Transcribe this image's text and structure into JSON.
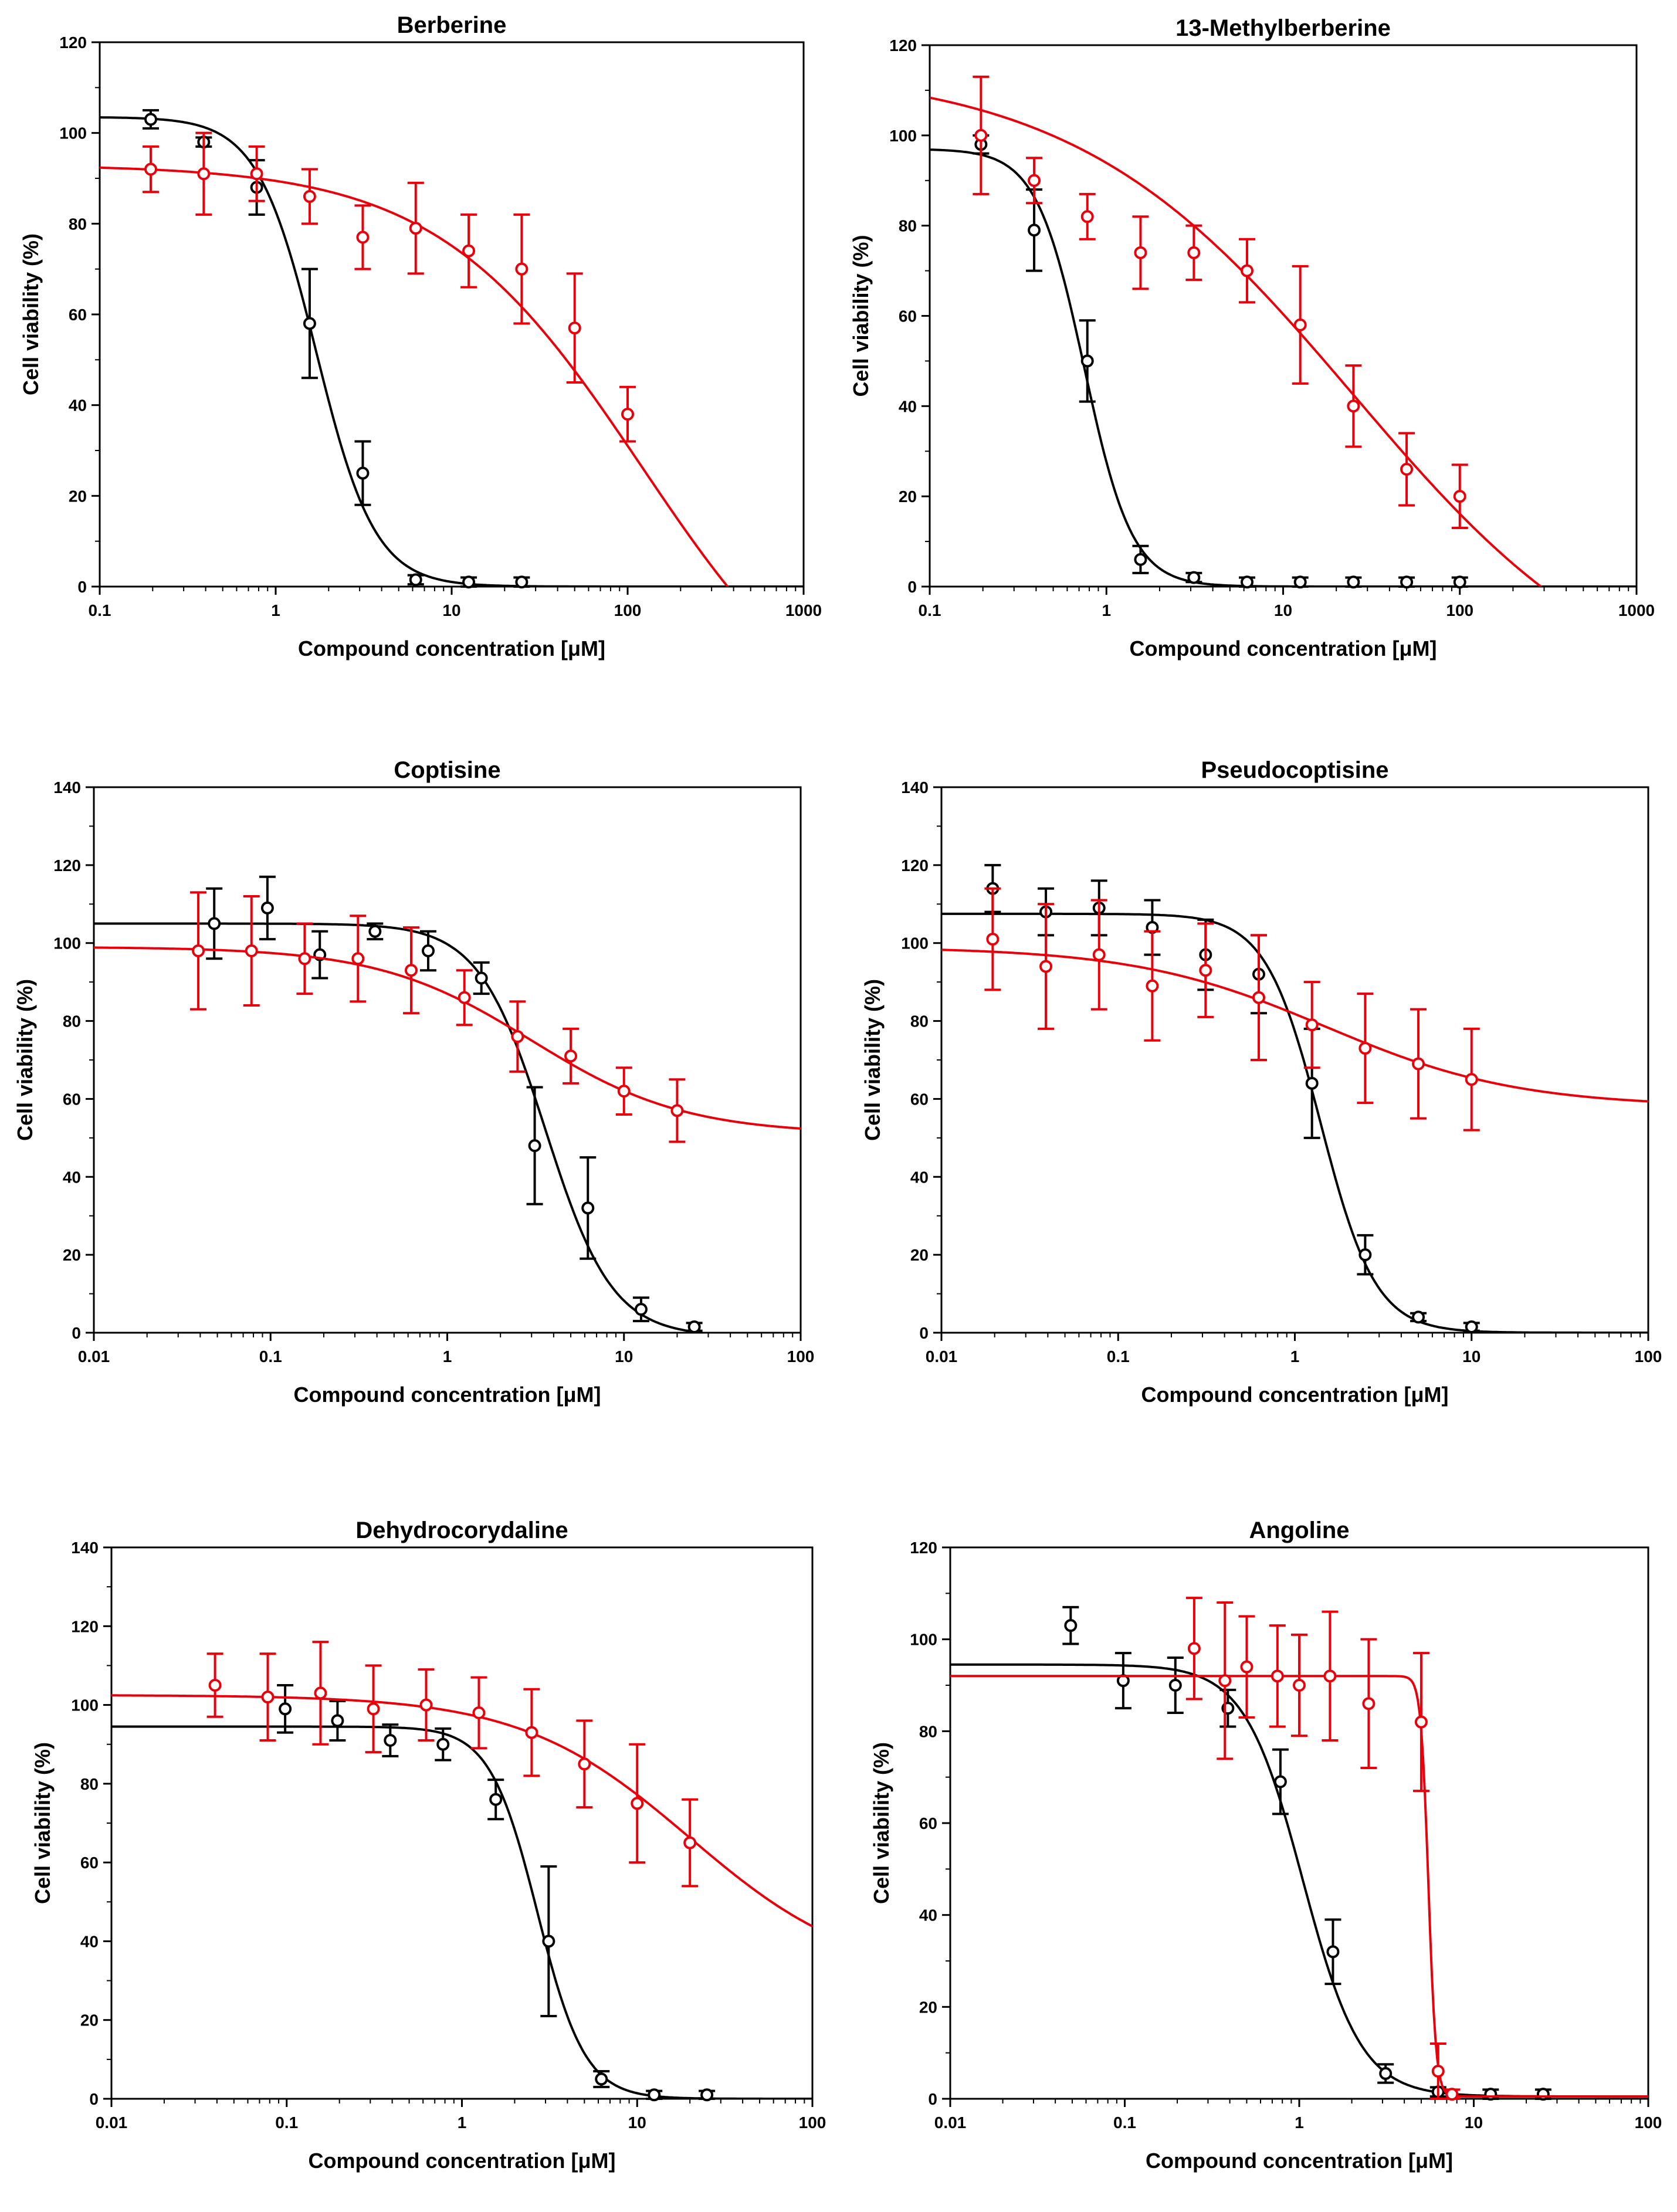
{
  "figure": {
    "xlabel_all": "Compound concentration [μM]",
    "ylabel_all": "Cell viability (%)"
  },
  "chart_data": [
    {
      "type": "scatter",
      "title": "Berberine",
      "xlabel": "Compound concentration [μM]",
      "ylabel": "Cell viability (%)",
      "xscale": "log",
      "xlim": [
        0.1,
        1000
      ],
      "ylim": [
        0,
        120
      ],
      "xticks": [
        "0.1",
        "1",
        "10",
        "100",
        "1000"
      ],
      "yticks": [
        "0",
        "20",
        "40",
        "60",
        "80",
        "100",
        "120"
      ],
      "series": [
        {
          "name": "black",
          "color": "#000000",
          "x": [
            0.195,
            0.39,
            0.78,
            1.56,
            3.125,
            6.25,
            12.5,
            25
          ],
          "y": [
            103,
            98,
            88,
            58,
            25,
            1.5,
            1,
            1
          ],
          "err": [
            2,
            1,
            6,
            12,
            7,
            1,
            1,
            1
          ],
          "fit": {
            "top": 103.5,
            "bottom": 0,
            "ec50": 1.7,
            "hill": 2.6
          }
        },
        {
          "name": "red",
          "color": "#e8000b",
          "x": [
            0.195,
            0.39,
            0.78,
            1.56,
            3.125,
            6.25,
            12.5,
            25,
            50,
            100
          ],
          "y": [
            92,
            91,
            91,
            86,
            77,
            79,
            74,
            70,
            57,
            38
          ],
          "err": [
            5,
            9,
            6,
            6,
            7,
            10,
            8,
            12,
            12,
            6
          ],
          "fit": {
            "top": 93,
            "bottom": -40,
            "ec50": 120,
            "hill": 0.75
          }
        }
      ]
    },
    {
      "type": "scatter",
      "title": "13-Methylberberine",
      "xlabel": "Compound concentration [μM]",
      "ylabel": "Cell viability (%)",
      "xscale": "log",
      "xlim": [
        0.1,
        1000
      ],
      "ylim": [
        0,
        120
      ],
      "xticks": [
        "0.1",
        "1",
        "10",
        "100",
        "1000"
      ],
      "yticks": [
        "0",
        "20",
        "40",
        "60",
        "80",
        "100",
        "120"
      ],
      "series": [
        {
          "name": "black",
          "color": "#000000",
          "x": [
            0.195,
            0.39,
            0.78,
            1.56,
            3.125,
            6.25,
            12.5,
            25,
            50,
            100
          ],
          "y": [
            98,
            79,
            50,
            6,
            2,
            1,
            1,
            1,
            1,
            1
          ],
          "err": [
            2,
            9,
            9,
            3,
            1,
            1,
            1,
            1,
            1,
            1
          ],
          "fit": {
            "top": 97,
            "bottom": 0,
            "ec50": 0.75,
            "hill": 3.2
          }
        },
        {
          "name": "red",
          "color": "#e8000b",
          "x": [
            0.195,
            0.39,
            0.78,
            1.56,
            3.125,
            6.25,
            12.5,
            25,
            50,
            100
          ],
          "y": [
            100,
            90,
            82,
            74,
            74,
            70,
            58,
            40,
            26,
            20
          ],
          "err": [
            13,
            5,
            5,
            8,
            6,
            7,
            13,
            9,
            8,
            7
          ],
          "fit": {
            "top": 115,
            "bottom": -30,
            "ec50": 25,
            "hill": 0.55
          }
        }
      ]
    },
    {
      "type": "scatter",
      "title": "Coptisine",
      "xlabel": "Compound concentration [μM]",
      "ylabel": "Cell viability (%)",
      "xscale": "log",
      "xlim": [
        0.01,
        100
      ],
      "ylim": [
        0,
        140
      ],
      "xticks": [
        "0.01",
        "0.1",
        "1",
        "10",
        "100"
      ],
      "yticks": [
        "0",
        "20",
        "40",
        "60",
        "80",
        "100",
        "120",
        "140"
      ],
      "series": [
        {
          "name": "black",
          "color": "#000000",
          "x": [
            0.048,
            0.096,
            0.19,
            0.39,
            0.78,
            1.56,
            3.125,
            6.25,
            12.5,
            25
          ],
          "y": [
            105,
            109,
            97,
            103,
            98,
            91,
            48,
            32,
            6,
            1.5
          ],
          "err": [
            9,
            8,
            6,
            2,
            5,
            4,
            15,
            13,
            3,
            1
          ],
          "fit": {
            "top": 105,
            "bottom": -1,
            "ec50": 3.6,
            "hill": 2.3
          }
        },
        {
          "name": "red",
          "color": "#e8000b",
          "x": [
            0.039,
            0.078,
            0.156,
            0.3125,
            0.625,
            1.25,
            2.5,
            5,
            10,
            20
          ],
          "y": [
            98,
            98,
            96,
            96,
            93,
            86,
            76,
            71,
            62,
            57
          ],
          "err": [
            15,
            14,
            9,
            11,
            11,
            7,
            9,
            7,
            6,
            8
          ],
          "fit": {
            "top": 99,
            "bottom": 51,
            "ec50": 3,
            "hill": 1
          }
        }
      ]
    },
    {
      "type": "scatter",
      "title": "Pseudocoptisine",
      "xlabel": "Compound concentration [μM]",
      "ylabel": "Cell viability (%)",
      "xscale": "log",
      "xlim": [
        0.01,
        100
      ],
      "ylim": [
        0,
        140
      ],
      "xticks": [
        "0.01",
        "0.1",
        "1",
        "10",
        "100"
      ],
      "yticks": [
        "0",
        "20",
        "40",
        "60",
        "80",
        "100",
        "120",
        "140"
      ],
      "series": [
        {
          "name": "black",
          "color": "#000000",
          "x": [
            0.0195,
            0.039,
            0.078,
            0.156,
            0.3125,
            0.625,
            1.25,
            2.5,
            5,
            10
          ],
          "y": [
            114,
            108,
            109,
            104,
            97,
            92,
            64,
            20,
            4,
            1.5
          ],
          "err": [
            6,
            6,
            7,
            7,
            9,
            10,
            14,
            5,
            1,
            1
          ],
          "fit": {
            "top": 107.5,
            "bottom": 0,
            "ec50": 1.4,
            "hill": 2.8
          }
        },
        {
          "name": "red",
          "color": "#e8000b",
          "x": [
            0.0195,
            0.039,
            0.078,
            0.156,
            0.3125,
            0.625,
            1.25,
            2.5,
            5,
            10
          ],
          "y": [
            101,
            94,
            97,
            89,
            93,
            86,
            79,
            73,
            69,
            65
          ],
          "err": [
            13,
            16,
            14,
            14,
            12,
            16,
            11,
            14,
            14,
            13
          ],
          "fit": {
            "top": 99,
            "bottom": 58,
            "ec50": 1.5,
            "hill": 0.8
          }
        }
      ]
    },
    {
      "type": "scatter",
      "title": "Dehydrocorydaline",
      "xlabel": "Compound concentration [μM]",
      "ylabel": "Cell viability (%)",
      "xscale": "log",
      "xlim": [
        0.01,
        100
      ],
      "ylim": [
        0,
        140
      ],
      "xticks": [
        "0.01",
        "0.1",
        "1",
        "10",
        "100"
      ],
      "yticks": [
        "0",
        "20",
        "40",
        "60",
        "80",
        "100",
        "120",
        "140"
      ],
      "series": [
        {
          "name": "black",
          "color": "#000000",
          "x": [
            0.098,
            0.195,
            0.39,
            0.78,
            1.56,
            3.125,
            6.25,
            12.5,
            25
          ],
          "y": [
            99,
            96,
            91,
            90,
            76,
            40,
            5,
            1,
            1
          ],
          "err": [
            6,
            5,
            4,
            4,
            5,
            19,
            2,
            1,
            1
          ],
          "fit": {
            "top": 94.5,
            "bottom": 0,
            "ec50": 2.7,
            "hill": 3.2
          }
        },
        {
          "name": "red",
          "color": "#e8000b",
          "x": [
            0.039,
            0.078,
            0.156,
            0.3125,
            0.625,
            1.25,
            2.5,
            5,
            10,
            20
          ],
          "y": [
            105,
            102,
            103,
            99,
            100,
            98,
            93,
            85,
            75,
            65
          ],
          "err": [
            8,
            11,
            13,
            11,
            9,
            9,
            11,
            11,
            15,
            11
          ],
          "fit": {
            "top": 102.5,
            "bottom": 30,
            "ec50": 20,
            "hill": 0.9
          }
        }
      ]
    },
    {
      "type": "scatter",
      "title": "Angoline",
      "xlabel": "Compound concentration [μM]",
      "ylabel": "Cell viability (%)",
      "xscale": "log",
      "xlim": [
        0.01,
        100
      ],
      "ylim": [
        0,
        120
      ],
      "xticks": [
        "0.01",
        "0.1",
        "1",
        "10",
        "100"
      ],
      "yticks": [
        "0",
        "20",
        "40",
        "60",
        "80",
        "100",
        "120"
      ],
      "series": [
        {
          "name": "black",
          "color": "#000000",
          "x": [
            0.049,
            0.098,
            0.195,
            0.39,
            0.78,
            1.56,
            3.125,
            6.25,
            12.5,
            25
          ],
          "y": [
            103,
            91,
            90,
            85,
            69,
            32,
            5.5,
            1.5,
            1,
            1
          ],
          "err": [
            4,
            6,
            6,
            4,
            7,
            7,
            2,
            1,
            1,
            1
          ],
          "fit": {
            "top": 94.5,
            "bottom": 0.5,
            "ec50": 1.05,
            "hill": 2.6
          }
        },
        {
          "name": "red",
          "color": "#e8000b",
          "x": [
            0.25,
            0.375,
            0.5,
            0.75,
            1,
            1.5,
            2.5,
            5,
            6.25,
            7.5
          ],
          "y": [
            98,
            91,
            94,
            92,
            90,
            92,
            86,
            82,
            6,
            1
          ],
          "err": [
            11,
            17,
            11,
            11,
            11,
            14,
            14,
            15,
            6,
            1
          ],
          "fit": {
            "top": 92,
            "bottom": 0.5,
            "ec50": 5.5,
            "hill": 20
          }
        }
      ]
    }
  ]
}
